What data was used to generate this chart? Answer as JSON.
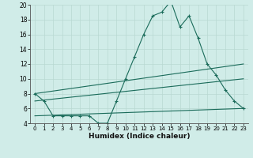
{
  "xlabel": "Humidex (Indice chaleur)",
  "background_color": "#d0ece8",
  "grid_color": "#b8d8d2",
  "line_color": "#1a6b5a",
  "xlim": [
    -0.5,
    23.5
  ],
  "ylim": [
    4,
    20
  ],
  "yticks": [
    4,
    6,
    8,
    10,
    12,
    14,
    16,
    18,
    20
  ],
  "xticks": [
    0,
    1,
    2,
    3,
    4,
    5,
    6,
    7,
    8,
    9,
    10,
    11,
    12,
    13,
    14,
    15,
    16,
    17,
    18,
    19,
    20,
    21,
    22,
    23
  ],
  "line1_x": [
    0,
    1,
    2,
    3,
    4,
    5,
    6,
    7,
    8,
    9,
    10,
    11,
    12,
    13,
    14,
    15,
    16,
    17,
    18,
    19,
    20,
    21,
    22,
    23
  ],
  "line1_y": [
    8,
    7,
    5,
    5,
    5,
    5,
    5,
    4,
    4,
    7,
    10,
    13,
    16,
    18.5,
    19,
    20.5,
    17,
    18.5,
    15.5,
    12,
    10.5,
    8.5,
    7,
    6
  ],
  "line2_x": [
    0,
    23
  ],
  "line2_y": [
    8,
    12
  ],
  "line3_x": [
    0,
    23
  ],
  "line3_y": [
    7,
    10
  ],
  "line4_x": [
    0,
    23
  ],
  "line4_y": [
    5,
    6
  ]
}
